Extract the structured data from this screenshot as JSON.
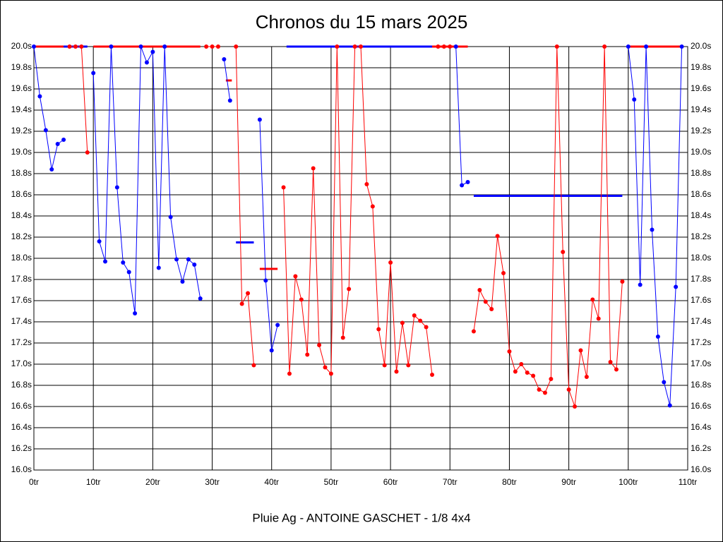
{
  "chart_data": {
    "type": "line",
    "title": "Chronos du 15 mars 2025",
    "x_label": "Pluie Ag - ANTOINE GASCHET - 1/8 4x4",
    "grid": true,
    "xlim": [
      0,
      110
    ],
    "xticks": [
      {
        "value": 0,
        "label": "0tr"
      },
      {
        "value": 10,
        "label": "10tr"
      },
      {
        "value": 20,
        "label": "20tr"
      },
      {
        "value": 30,
        "label": "30tr"
      },
      {
        "value": 40,
        "label": "40tr"
      },
      {
        "value": 50,
        "label": "50tr"
      },
      {
        "value": 60,
        "label": "60tr"
      },
      {
        "value": 70,
        "label": "70tr"
      },
      {
        "value": 80,
        "label": "80tr"
      },
      {
        "value": 90,
        "label": "90tr"
      },
      {
        "value": 100,
        "label": "100tr"
      },
      {
        "value": 110,
        "label": "110tr"
      }
    ],
    "ylim": [
      16.0,
      20.0
    ],
    "yticks": [
      {
        "value": 16.0,
        "label": "16.0s"
      },
      {
        "value": 16.2,
        "label": "16.2s"
      },
      {
        "value": 16.4,
        "label": "16.4s"
      },
      {
        "value": 16.6,
        "label": "16.6s"
      },
      {
        "value": 16.8,
        "label": "16.8s"
      },
      {
        "value": 17.0,
        "label": "17.0s"
      },
      {
        "value": 17.2,
        "label": "17.2s"
      },
      {
        "value": 17.4,
        "label": "17.4s"
      },
      {
        "value": 17.6,
        "label": "17.6s"
      },
      {
        "value": 17.8,
        "label": "17.8s"
      },
      {
        "value": 18.0,
        "label": "18.0s"
      },
      {
        "value": 18.2,
        "label": "18.2s"
      },
      {
        "value": 18.4,
        "label": "18.4s"
      },
      {
        "value": 18.6,
        "label": "18.6s"
      },
      {
        "value": 18.8,
        "label": "18.8s"
      },
      {
        "value": 19.0,
        "label": "19.0s"
      },
      {
        "value": 19.2,
        "label": "19.2s"
      },
      {
        "value": 19.4,
        "label": "19.4s"
      },
      {
        "value": 19.6,
        "label": "19.6s"
      },
      {
        "value": 19.8,
        "label": "19.8s"
      },
      {
        "value": 20.0,
        "label": "20.0s"
      }
    ],
    "series": [
      {
        "color": "#ff0000",
        "markers": false,
        "x": [
          0,
          5,
          null,
          10,
          28,
          null,
          67,
          73,
          null,
          100,
          109,
          null,
          32.3,
          33.3,
          null,
          38,
          41
        ],
        "values": [
          20.0,
          20.0,
          null,
          20.0,
          20.0,
          null,
          20.0,
          20.0,
          null,
          20.0,
          20.0,
          null,
          19.68,
          19.68,
          null,
          17.9,
          17.9
        ]
      },
      {
        "color": "#0000ff",
        "markers": false,
        "x": [
          5,
          9,
          null,
          42.5,
          67,
          null,
          34,
          37,
          null,
          74,
          99
        ],
        "values": [
          20.0,
          20.0,
          null,
          20.0,
          20.0,
          null,
          18.15,
          18.15,
          null,
          18.59,
          18.59
        ]
      },
      {
        "color": "#0000ff",
        "markers": true,
        "x": [
          0,
          1,
          2,
          3,
          4,
          5,
          null,
          10,
          11,
          12,
          13,
          14,
          15,
          16,
          17,
          18,
          19,
          20,
          21,
          22,
          23,
          24,
          25,
          26,
          27,
          28,
          null,
          32,
          33,
          null,
          38,
          39,
          40,
          41,
          null,
          71,
          72,
          73,
          null,
          100,
          101,
          102,
          103,
          104,
          105,
          106,
          107,
          108,
          109
        ],
        "values": [
          20.0,
          19.53,
          19.21,
          18.84,
          19.08,
          19.12,
          null,
          19.75,
          18.16,
          17.97,
          20.0,
          18.67,
          17.96,
          17.87,
          17.48,
          20.0,
          19.85,
          19.95,
          17.91,
          20.0,
          18.39,
          17.99,
          17.78,
          17.99,
          17.94,
          17.62,
          null,
          19.88,
          19.49,
          null,
          19.31,
          17.79,
          17.13,
          17.37,
          null,
          20.0,
          18.69,
          18.72,
          null,
          20.0,
          19.5,
          17.75,
          20.0,
          18.27,
          17.26,
          16.83,
          16.61,
          17.73,
          20.0
        ]
      },
      {
        "color": "#ff0000",
        "markers": true,
        "x": [
          6,
          7,
          8,
          9,
          null,
          29,
          30,
          31,
          null,
          34,
          35,
          36,
          37,
          null,
          42,
          43,
          44,
          45,
          46,
          47,
          48,
          49,
          50,
          51,
          52,
          53,
          54,
          55,
          56,
          57,
          58,
          59,
          60,
          61,
          62,
          63,
          64,
          65,
          66,
          67,
          null,
          68,
          69,
          70,
          null,
          74,
          75,
          76,
          77,
          78,
          79,
          80,
          81,
          82,
          83,
          84,
          85,
          86,
          87,
          88,
          89,
          90,
          91,
          92,
          93,
          94,
          95,
          96,
          97,
          98,
          99
        ],
        "values": [
          20.0,
          20.0,
          20.0,
          19.0,
          null,
          20.0,
          20.0,
          20.0,
          null,
          20.0,
          17.57,
          17.67,
          16.99,
          null,
          18.67,
          16.91,
          17.83,
          17.61,
          17.09,
          18.85,
          17.18,
          16.97,
          16.91,
          20.0,
          17.25,
          17.71,
          20.0,
          20.0,
          18.7,
          18.49,
          17.33,
          16.99,
          17.96,
          16.93,
          17.39,
          16.99,
          17.46,
          17.41,
          17.35,
          16.9,
          null,
          20.0,
          20.0,
          20.0,
          null,
          17.31,
          17.7,
          17.59,
          17.52,
          18.21,
          17.86,
          17.12,
          16.93,
          17.0,
          16.92,
          16.89,
          16.76,
          16.73,
          16.86,
          20.0,
          18.06,
          16.76,
          16.6,
          17.13,
          16.88,
          17.61,
          17.43,
          20.0,
          17.02,
          16.95,
          17.78
        ]
      }
    ]
  }
}
